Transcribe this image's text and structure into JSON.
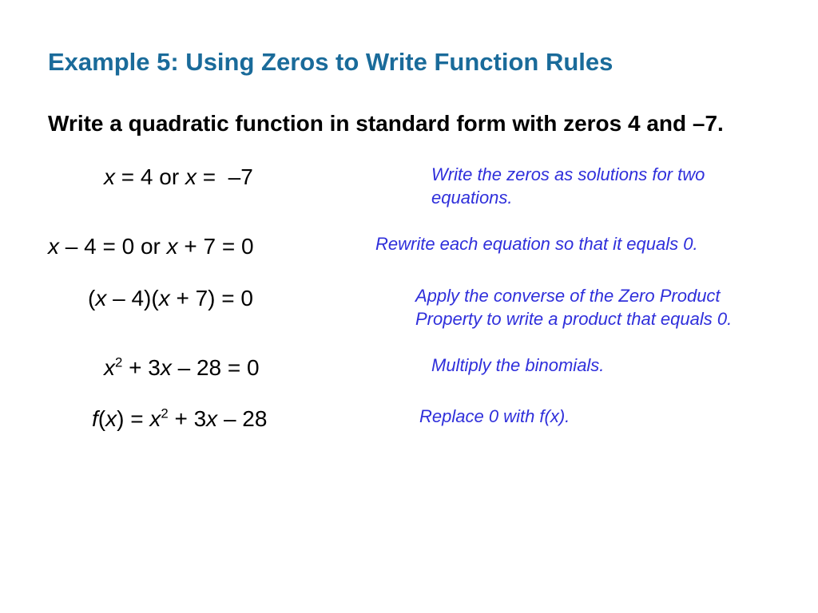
{
  "title": "Example 5: Using Zeros to Write Function Rules",
  "prompt": "Write a quadratic function in standard form with zeros 4 and –7.",
  "steps": [
    {
      "explain": "Write the zeros as solutions for two equations."
    },
    {
      "explain": "Rewrite each equation so that it equals 0."
    },
    {
      "explain": "Apply the converse of the Zero Product Property to write a product that equals 0."
    },
    {
      "explain": "Multiply the binomials."
    },
    {
      "explain": "Replace 0 with f(x)."
    }
  ],
  "colors": {
    "title": "#1a6b9a",
    "body": "#000000",
    "explain": "#2f2fdb",
    "background": "#ffffff"
  },
  "typography": {
    "title_fontsize": 31,
    "prompt_fontsize": 28,
    "equation_fontsize": 28,
    "explain_fontsize": 22,
    "font_family": "Verdana"
  },
  "math": {
    "zeros": [
      4,
      -7
    ],
    "step1": "x = 4 or x = –7",
    "step2": "x – 4 = 0 or x + 7 = 0",
    "step3": "(x – 4)(x + 7) = 0",
    "step4": "x² + 3x – 28 = 0",
    "step5": "f(x) = x² + 3x – 28"
  }
}
